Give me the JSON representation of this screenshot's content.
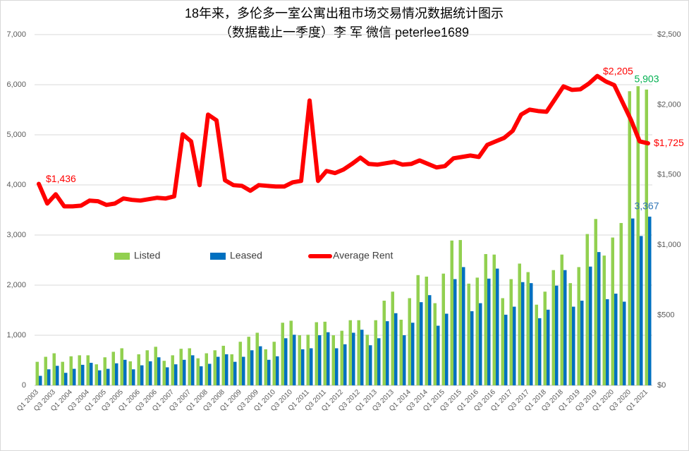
{
  "chart_data": {
    "type": "bar-line",
    "title": "18年来，多伦多一室公寓出租市场交易情况数据统计图示",
    "subtitle": "（数据截止一季度）李 军  微信  peterlee1689",
    "categories": [
      "Q1 2003",
      null,
      "Q3 2003",
      null,
      "Q1 2004",
      null,
      "Q3 2004",
      null,
      "Q1 2005",
      null,
      "Q3 2005",
      null,
      "Q1 2006",
      null,
      "Q3 2006",
      null,
      "Q1 2007",
      null,
      "Q3 2007",
      null,
      "Q1 2008",
      null,
      "Q3 2008",
      null,
      "Q1 2009",
      null,
      "Q3 2009",
      null,
      "Q1 2010",
      null,
      "Q3 2010",
      null,
      "Q1 2011",
      null,
      "Q3 2011",
      null,
      "Q1 2012",
      null,
      "Q3 2012",
      null,
      "Q1 2013",
      null,
      "Q3 2013",
      null,
      "Q1 2014",
      null,
      "Q3 2014",
      null,
      "Q1 2015",
      null,
      "Q3 2015",
      null,
      "Q1 2016",
      null,
      "Q3 2016",
      null,
      "Q1 2017",
      null,
      "Q3 2017",
      null,
      "Q1 2018",
      null,
      "Q3 2018",
      null,
      "Q1 2019",
      null,
      "Q3 2019",
      null,
      "Q1 2020",
      null,
      "Q3 2020",
      null,
      "Q1 2021"
    ],
    "series": [
      {
        "name": "Listed",
        "color": "#92d050",
        "label_color": "#00b050",
        "kind": "bar",
        "values": [
          470,
          570,
          640,
          470,
          580,
          600,
          600,
          420,
          560,
          670,
          740,
          480,
          620,
          700,
          770,
          490,
          600,
          730,
          740,
          540,
          640,
          700,
          790,
          620,
          870,
          970,
          1050,
          720,
          870,
          1250,
          1290,
          1000,
          1010,
          1260,
          1270,
          1000,
          1090,
          1300,
          1300,
          1010,
          1300,
          1690,
          1870,
          1310,
          1740,
          2200,
          2170,
          1640,
          2230,
          2890,
          2900,
          2030,
          2150,
          2620,
          2610,
          1740,
          2120,
          2430,
          2260,
          1610,
          1870,
          2300,
          2610,
          2040,
          2360,
          3020,
          3320,
          2590,
          2950,
          3240,
          5870,
          5970,
          5903
        ],
        "value_labels": [
          null,
          null,
          null,
          null,
          null,
          null,
          null,
          null,
          null,
          null,
          null,
          null,
          null,
          null,
          null,
          null,
          null,
          null,
          null,
          null,
          null,
          null,
          null,
          null,
          null,
          null,
          null,
          null,
          null,
          null,
          null,
          null,
          null,
          null,
          null,
          null,
          null,
          null,
          null,
          null,
          null,
          null,
          null,
          null,
          null,
          null,
          null,
          null,
          null,
          null,
          null,
          null,
          null,
          null,
          null,
          null,
          null,
          null,
          null,
          null,
          null,
          null,
          null,
          null,
          null,
          null,
          null,
          null,
          null,
          null,
          null,
          null,
          "5,903"
        ]
      },
      {
        "name": "Leased",
        "color": "#0070c0",
        "label_color": "#2e75b6",
        "kind": "bar",
        "values": [
          190,
          320,
          390,
          250,
          330,
          410,
          450,
          300,
          330,
          440,
          510,
          320,
          400,
          480,
          560,
          360,
          420,
          510,
          600,
          380,
          430,
          570,
          620,
          470,
          570,
          700,
          780,
          510,
          580,
          940,
          1010,
          720,
          740,
          1000,
          1060,
          740,
          820,
          1050,
          1110,
          800,
          940,
          1280,
          1440,
          1000,
          1250,
          1660,
          1800,
          1190,
          1430,
          2120,
          2360,
          1480,
          1640,
          2130,
          2330,
          1410,
          1570,
          2060,
          2040,
          1340,
          1510,
          1990,
          2300,
          1570,
          1690,
          2370,
          2660,
          1720,
          1830,
          1670,
          3330,
          2980,
          3367
        ],
        "value_labels": [
          null,
          null,
          null,
          null,
          null,
          null,
          null,
          null,
          null,
          null,
          null,
          null,
          null,
          null,
          null,
          null,
          null,
          null,
          null,
          null,
          null,
          null,
          null,
          null,
          null,
          null,
          null,
          null,
          null,
          null,
          null,
          null,
          null,
          null,
          null,
          null,
          null,
          null,
          null,
          null,
          null,
          null,
          null,
          null,
          null,
          null,
          null,
          null,
          null,
          null,
          null,
          null,
          null,
          null,
          null,
          null,
          null,
          null,
          null,
          null,
          null,
          null,
          null,
          null,
          null,
          null,
          null,
          null,
          null,
          null,
          null,
          null,
          "3,367"
        ]
      },
      {
        "name": "Average Rent",
        "color": "#ff0000",
        "label_color": "#ff0000",
        "kind": "line",
        "axis": "y2",
        "values": [
          1436,
          1296,
          1362,
          1276,
          1276,
          1281,
          1317,
          1312,
          1286,
          1296,
          1332,
          1322,
          1317,
          1327,
          1337,
          1332,
          1347,
          1789,
          1739,
          1427,
          1930,
          1889,
          1462,
          1427,
          1422,
          1387,
          1427,
          1422,
          1417,
          1417,
          1447,
          1457,
          2030,
          1457,
          1528,
          1513,
          1538,
          1578,
          1623,
          1578,
          1573,
          1583,
          1593,
          1573,
          1578,
          1603,
          1578,
          1553,
          1563,
          1618,
          1628,
          1638,
          1628,
          1714,
          1739,
          1764,
          1814,
          1930,
          1965,
          1955,
          1950,
          2040,
          2131,
          2106,
          2110,
          2151,
          2205,
          2166,
          2140,
          2015,
          1889,
          1739,
          1725
        ],
        "value_labels": [
          "$1,436",
          null,
          null,
          null,
          null,
          null,
          null,
          null,
          null,
          null,
          null,
          null,
          null,
          null,
          null,
          null,
          null,
          null,
          null,
          null,
          null,
          null,
          null,
          null,
          null,
          null,
          null,
          null,
          null,
          null,
          null,
          null,
          null,
          null,
          null,
          null,
          null,
          null,
          null,
          null,
          null,
          null,
          null,
          null,
          null,
          null,
          null,
          null,
          null,
          null,
          null,
          null,
          null,
          null,
          null,
          null,
          null,
          null,
          null,
          null,
          null,
          null,
          null,
          null,
          null,
          null,
          "$2,205",
          null,
          null,
          null,
          null,
          null,
          "$1,725"
        ]
      }
    ],
    "ylim": [
      0,
      7000
    ],
    "yticks": [
      0,
      {
        "value": 1000,
        "label": "1,000"
      },
      {
        "value": 2000,
        "label": "2,000"
      },
      {
        "value": 3000,
        "label": "3,000"
      },
      {
        "value": 4000,
        "label": "4,000"
      },
      {
        "value": 5000,
        "label": "5,000"
      },
      {
        "value": 6000,
        "label": "6,000"
      },
      {
        "value": 7000,
        "label": "7,000"
      }
    ],
    "y2lim": [
      0,
      2500
    ],
    "y2ticks": [
      {
        "value": 0,
        "label": "$0"
      },
      {
        "value": 500,
        "label": "$500"
      },
      {
        "value": 1000,
        "label": "$1,000"
      },
      {
        "value": 1500,
        "label": "$1,500"
      },
      {
        "value": 2000,
        "label": "$2,000"
      },
      {
        "value": 2500,
        "label": "$2,500"
      }
    ],
    "grid": true
  }
}
